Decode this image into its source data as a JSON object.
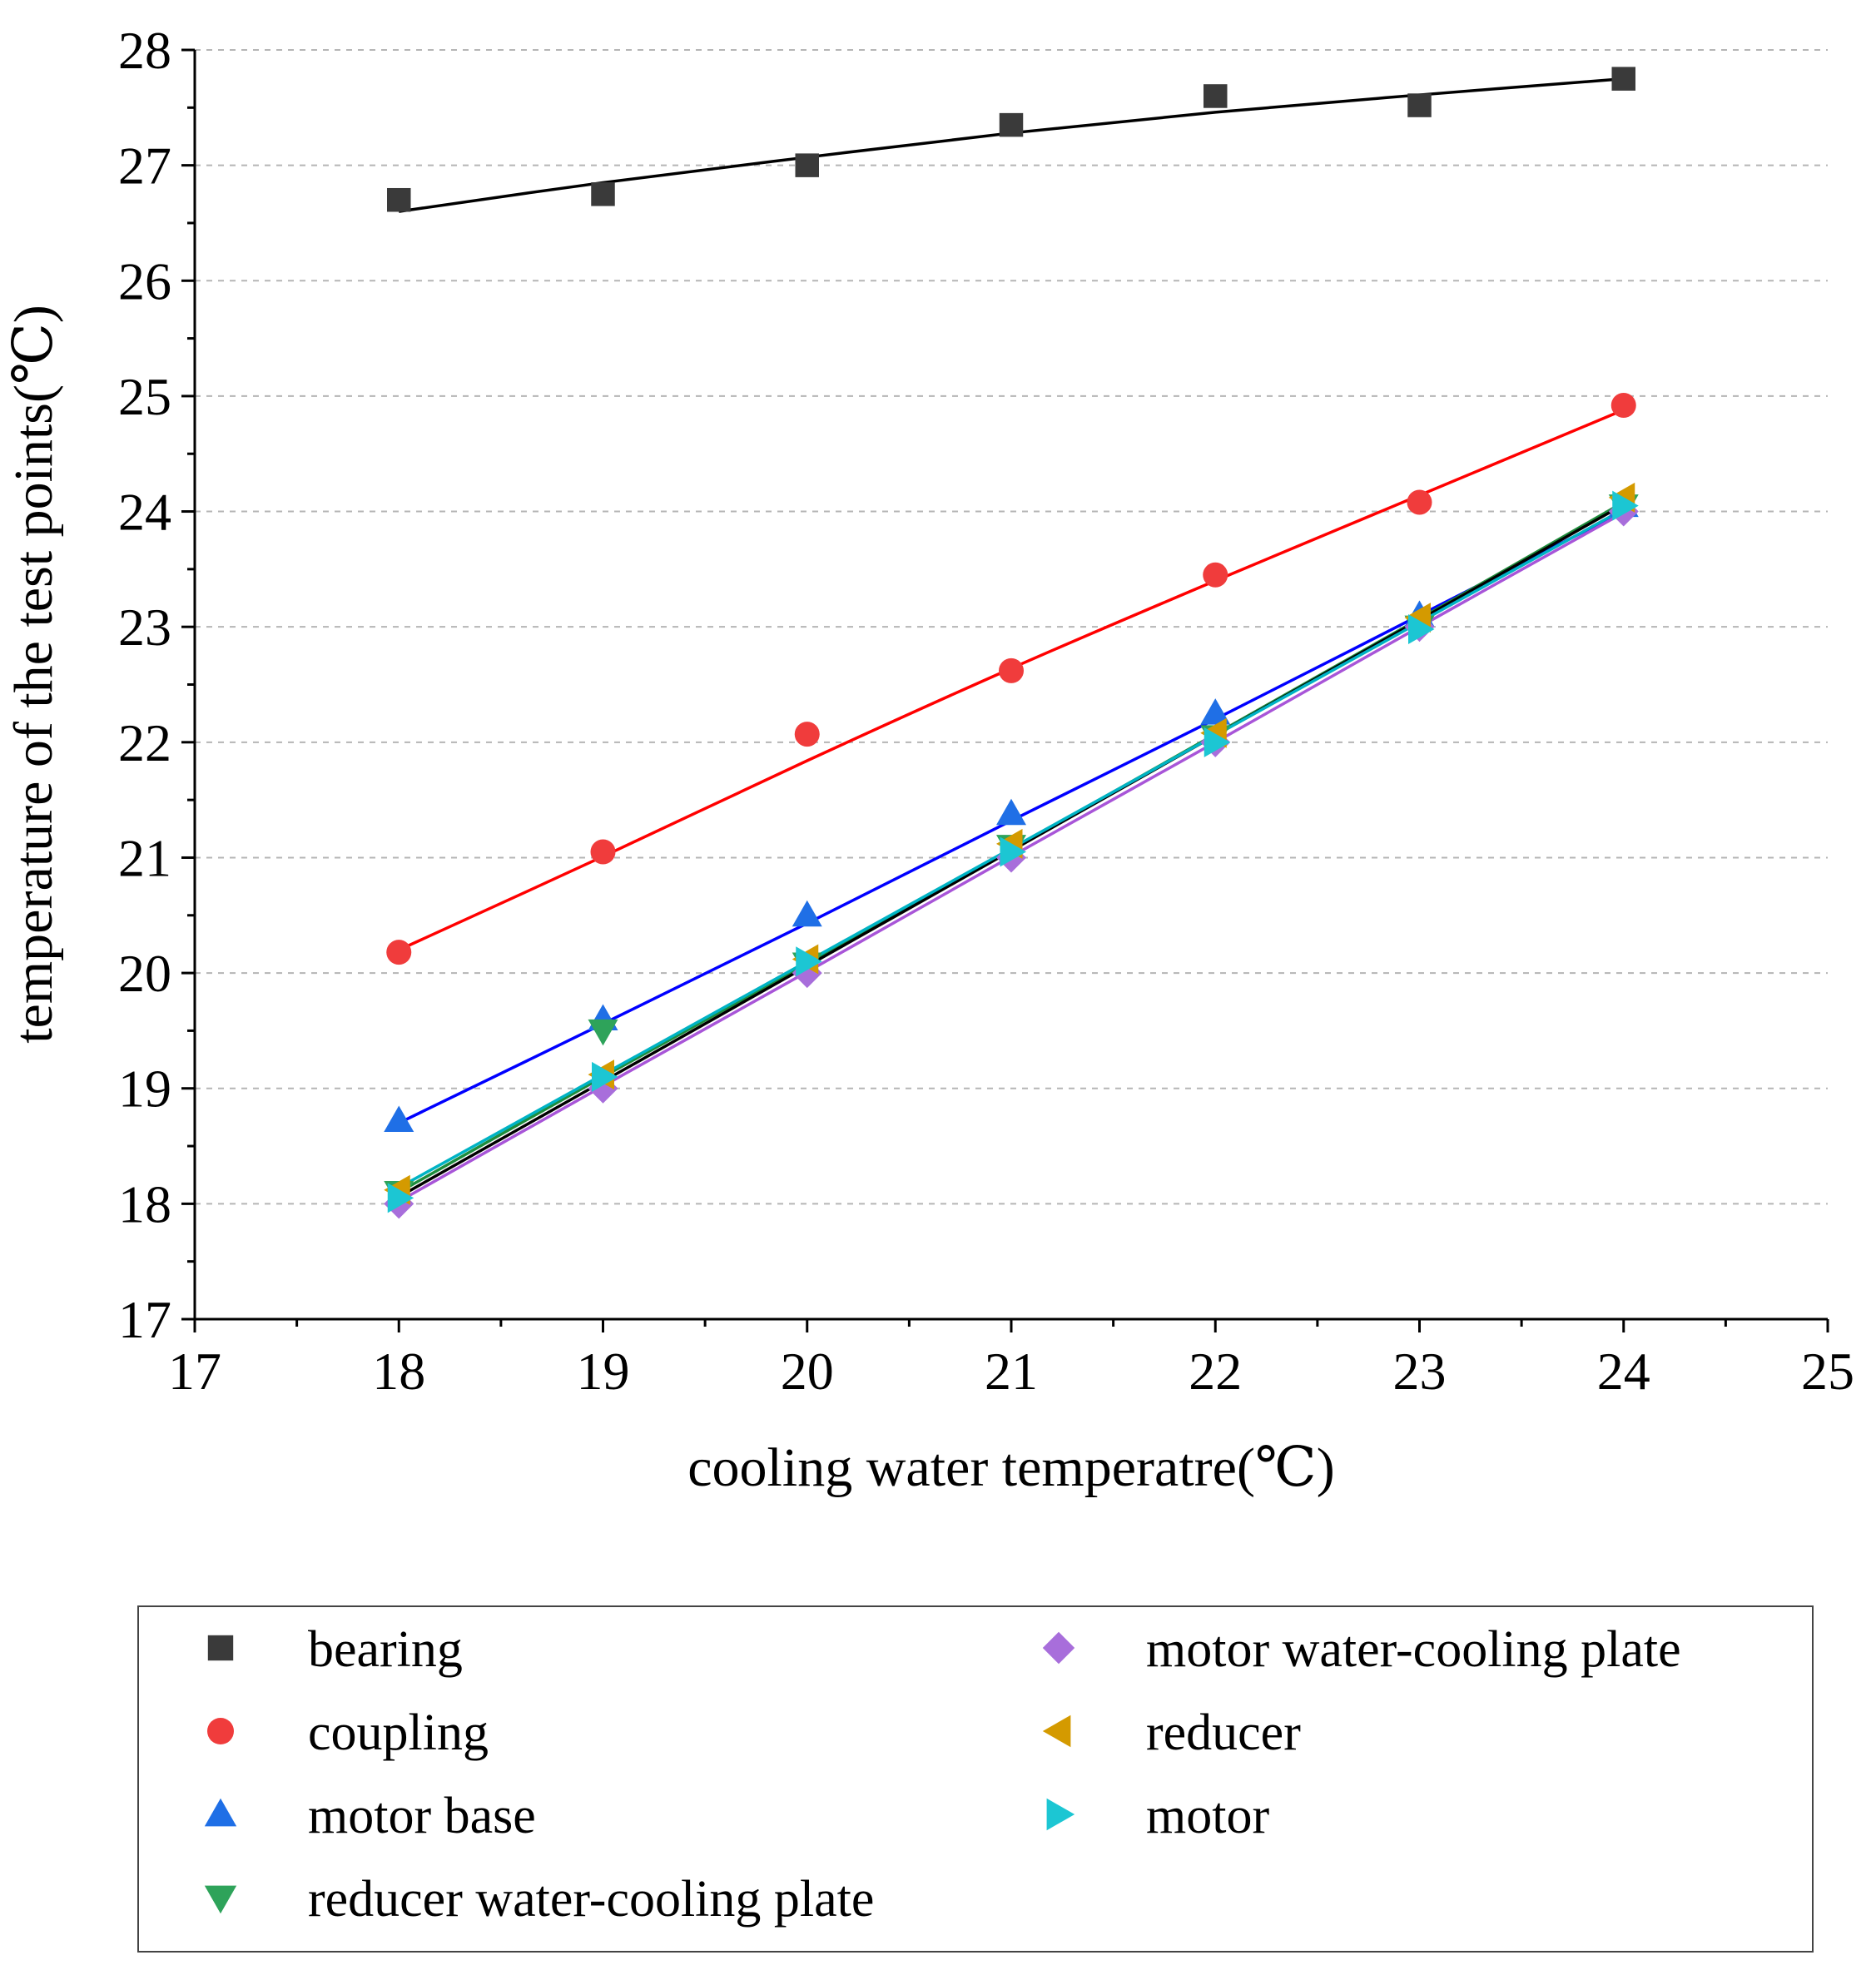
{
  "chart_data": {
    "type": "scatter",
    "title": "",
    "xlabel": "cooling water temperatre(℃)",
    "ylabel": "temperature of the test points(℃)",
    "xlim": [
      17,
      25
    ],
    "ylim": [
      17,
      28
    ],
    "xticks": [
      17,
      18,
      19,
      20,
      21,
      22,
      23,
      24,
      25
    ],
    "yticks": [
      17,
      18,
      19,
      20,
      21,
      22,
      23,
      24,
      25,
      26,
      27,
      28
    ],
    "grid": "horizontal dashed",
    "legend_position": "bottom",
    "x": [
      18,
      19,
      20,
      21,
      22,
      23,
      24
    ],
    "series": [
      {
        "name": "bearing",
        "marker": "square",
        "color": "#3a3a3a",
        "line_color": "#000000",
        "values": [
          26.7,
          26.75,
          27.0,
          27.35,
          27.6,
          27.52,
          27.75
        ],
        "fit": [
          26.6,
          26.85,
          27.07,
          27.28,
          27.46,
          27.61,
          27.75
        ]
      },
      {
        "name": "coupling",
        "marker": "circle",
        "color": "#f03c3c",
        "line_color": "#ff0000",
        "values": [
          20.18,
          21.05,
          22.07,
          22.62,
          23.45,
          24.08,
          24.92
        ],
        "fit": [
          20.2,
          21.01,
          21.84,
          22.64,
          23.4,
          24.14,
          24.88
        ]
      },
      {
        "name": "motor base",
        "marker": "triangle-up",
        "color": "#1f6fe6",
        "line_color": "#0000ff",
        "values": [
          18.72,
          19.6,
          20.5,
          21.38,
          22.25,
          23.1,
          24.05
        ],
        "fit": [
          18.7,
          19.56,
          20.43,
          21.32,
          22.2,
          23.1,
          24.0
        ]
      },
      {
        "name": "reducer water-cooling plate",
        "marker": "triangle-down",
        "color": "#2ea35a",
        "line_color": "#1e8c3c",
        "values": [
          18.1,
          19.5,
          20.08,
          21.1,
          22.05,
          23.0,
          24.05
        ],
        "fit": [
          18.1,
          19.1,
          20.08,
          21.07,
          22.07,
          23.07,
          24.08
        ]
      },
      {
        "name": "motor water-cooling plate",
        "marker": "diamond",
        "color": "#a86edb",
        "line_color": "#a855d8",
        "values": [
          18.0,
          19.0,
          20.0,
          21.0,
          22.0,
          23.0,
          24.0
        ],
        "fit": [
          18.02,
          19.02,
          20.01,
          21.01,
          22.0,
          23.0,
          23.99
        ]
      },
      {
        "name": "reducer",
        "marker": "triangle-left",
        "color": "#d49a00",
        "line_color": "#000000",
        "values": [
          18.12,
          19.12,
          20.12,
          21.12,
          22.08,
          23.08,
          24.12
        ],
        "fit": [
          18.06,
          19.06,
          20.06,
          21.06,
          22.06,
          23.06,
          24.06
        ]
      },
      {
        "name": "motor",
        "marker": "triangle-right",
        "color": "#1cc6d3",
        "line_color": "#00b3c4",
        "values": [
          18.05,
          19.1,
          20.1,
          21.05,
          22.0,
          22.98,
          24.05
        ],
        "fit": [
          18.14,
          19.12,
          20.1,
          21.08,
          22.06,
          23.04,
          24.02
        ]
      }
    ]
  }
}
